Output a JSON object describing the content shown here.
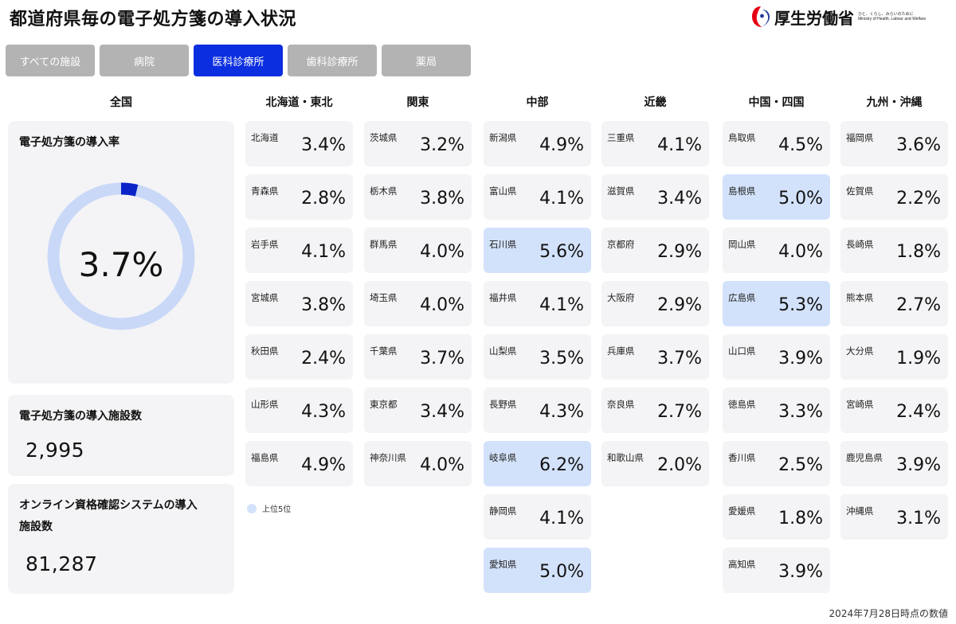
{
  "header": {
    "title": "都道府県毎の電子処方箋の導入状況",
    "ministry_name": "厚生労働省",
    "ministry_tagline_ja": "ひと、くらし、みらいのために",
    "ministry_tagline_en": "Ministry of Health, Labour and Welfare"
  },
  "tabs": [
    {
      "label": "すべての施設",
      "active": false
    },
    {
      "label": "病院",
      "active": false
    },
    {
      "label": "医科診療所",
      "active": true
    },
    {
      "label": "歯科診療所",
      "active": false
    },
    {
      "label": "薬局",
      "active": false
    }
  ],
  "national": {
    "header": "全国",
    "rate_title": "電子処方箋の導入率",
    "rate_value": "3.7%",
    "rate_fraction": 0.037,
    "facilities_title": "電子処方箋の導入施設数",
    "facilities_value": "2,995",
    "online_title_line1": "オンライン資格確認システムの導入",
    "online_title_line2": "施設数",
    "online_value": "81,287"
  },
  "regions": [
    {
      "name": "北海道・東北",
      "prefs": [
        {
          "name": "北海道",
          "rate": "3.4%",
          "top5": false
        },
        {
          "name": "青森県",
          "rate": "2.8%",
          "top5": false
        },
        {
          "name": "岩手県",
          "rate": "4.1%",
          "top5": false
        },
        {
          "name": "宮城県",
          "rate": "3.8%",
          "top5": false
        },
        {
          "name": "秋田県",
          "rate": "2.4%",
          "top5": false
        },
        {
          "name": "山形県",
          "rate": "4.3%",
          "top5": false
        },
        {
          "name": "福島県",
          "rate": "4.9%",
          "top5": false
        }
      ]
    },
    {
      "name": "関東",
      "prefs": [
        {
          "name": "茨城県",
          "rate": "3.2%",
          "top5": false
        },
        {
          "name": "栃木県",
          "rate": "3.8%",
          "top5": false
        },
        {
          "name": "群馬県",
          "rate": "4.0%",
          "top5": false
        },
        {
          "name": "埼玉県",
          "rate": "4.0%",
          "top5": false
        },
        {
          "name": "千葉県",
          "rate": "3.7%",
          "top5": false
        },
        {
          "name": "東京都",
          "rate": "3.4%",
          "top5": false
        },
        {
          "name": "神奈川県",
          "rate": "4.0%",
          "top5": false
        }
      ]
    },
    {
      "name": "中部",
      "prefs": [
        {
          "name": "新潟県",
          "rate": "4.9%",
          "top5": false
        },
        {
          "name": "富山県",
          "rate": "4.1%",
          "top5": false
        },
        {
          "name": "石川県",
          "rate": "5.6%",
          "top5": true
        },
        {
          "name": "福井県",
          "rate": "4.1%",
          "top5": false
        },
        {
          "name": "山梨県",
          "rate": "3.5%",
          "top5": false
        },
        {
          "name": "長野県",
          "rate": "4.3%",
          "top5": false
        },
        {
          "name": "岐阜県",
          "rate": "6.2%",
          "top5": true
        },
        {
          "name": "静岡県",
          "rate": "4.1%",
          "top5": false
        },
        {
          "name": "愛知県",
          "rate": "5.0%",
          "top5": true
        }
      ]
    },
    {
      "name": "近畿",
      "prefs": [
        {
          "name": "三重県",
          "rate": "4.1%",
          "top5": false
        },
        {
          "name": "滋賀県",
          "rate": "3.4%",
          "top5": false
        },
        {
          "name": "京都府",
          "rate": "2.9%",
          "top5": false
        },
        {
          "name": "大阪府",
          "rate": "2.9%",
          "top5": false
        },
        {
          "name": "兵庫県",
          "rate": "3.7%",
          "top5": false
        },
        {
          "name": "奈良県",
          "rate": "2.7%",
          "top5": false
        },
        {
          "name": "和歌山県",
          "rate": "2.0%",
          "top5": false
        }
      ]
    },
    {
      "name": "中国・四国",
      "prefs": [
        {
          "name": "鳥取県",
          "rate": "4.5%",
          "top5": false
        },
        {
          "name": "島根県",
          "rate": "5.0%",
          "top5": true
        },
        {
          "name": "岡山県",
          "rate": "4.0%",
          "top5": false
        },
        {
          "name": "広島県",
          "rate": "5.3%",
          "top5": true
        },
        {
          "name": "山口県",
          "rate": "3.9%",
          "top5": false
        },
        {
          "name": "徳島県",
          "rate": "3.3%",
          "top5": false
        },
        {
          "name": "香川県",
          "rate": "2.5%",
          "top5": false
        },
        {
          "name": "愛媛県",
          "rate": "1.8%",
          "top5": false
        },
        {
          "name": "高知県",
          "rate": "3.9%",
          "top5": false
        }
      ]
    },
    {
      "name": "九州・沖縄",
      "prefs": [
        {
          "name": "福岡県",
          "rate": "3.6%",
          "top5": false
        },
        {
          "name": "佐賀県",
          "rate": "2.2%",
          "top5": false
        },
        {
          "name": "長崎県",
          "rate": "1.8%",
          "top5": false
        },
        {
          "name": "熊本県",
          "rate": "2.7%",
          "top5": false
        },
        {
          "name": "大分県",
          "rate": "1.9%",
          "top5": false
        },
        {
          "name": "宮崎県",
          "rate": "2.4%",
          "top5": false
        },
        {
          "name": "鹿児島県",
          "rate": "3.9%",
          "top5": false
        },
        {
          "name": "沖縄県",
          "rate": "3.1%",
          "top5": false
        }
      ]
    }
  ],
  "legend": {
    "label": "上位5位"
  },
  "footnote": "2024年7月28日時点の数値",
  "colors": {
    "tab_active": "#0a2ee0",
    "tab_inactive": "#b3b3b3",
    "card_bg": "#f4f4f6",
    "top5_bg": "#d3e2fb",
    "donut_track": "#c9d8f7",
    "donut_fill": "#0a24c8",
    "logo_red": "#e60012",
    "logo_blue": "#1e3a9a"
  }
}
